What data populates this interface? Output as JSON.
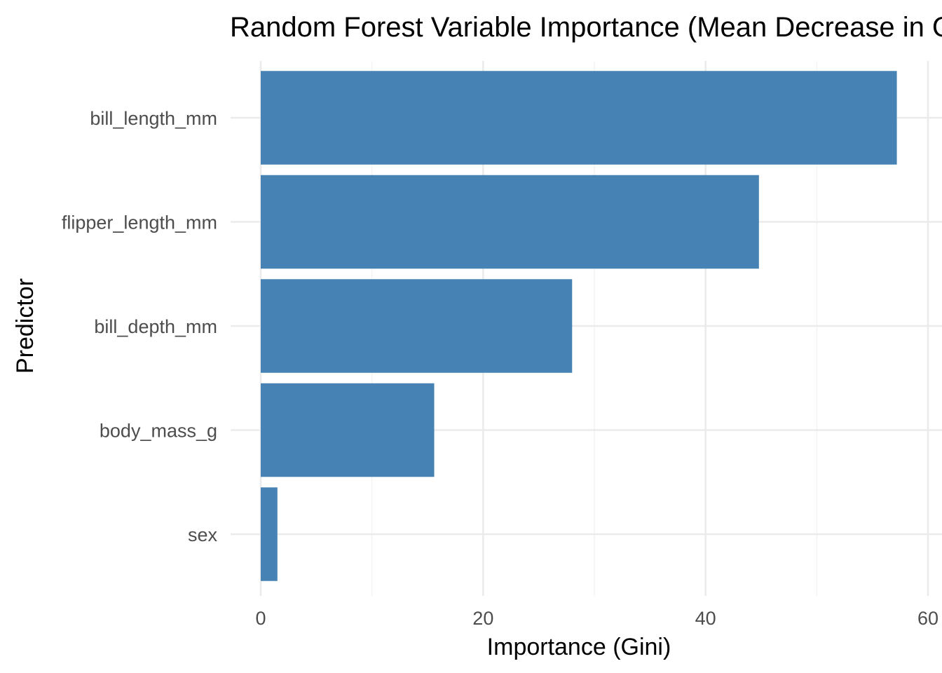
{
  "chart_data": {
    "type": "bar",
    "orientation": "horizontal",
    "title": "Random Forest Variable Importance (Mean Decrease in Gini)",
    "xlabel": "Importance (Gini)",
    "ylabel": "Predictor",
    "categories": [
      "bill_length_mm",
      "flipper_length_mm",
      "bill_depth_mm",
      "body_mass_g",
      "sex"
    ],
    "values": [
      57.2,
      44.8,
      28.0,
      15.6,
      1.5
    ],
    "xlim": [
      0,
      60
    ],
    "xticks": [
      "0",
      "20",
      "40",
      "60"
    ],
    "bar_color": "#4682B4",
    "grid": true
  }
}
